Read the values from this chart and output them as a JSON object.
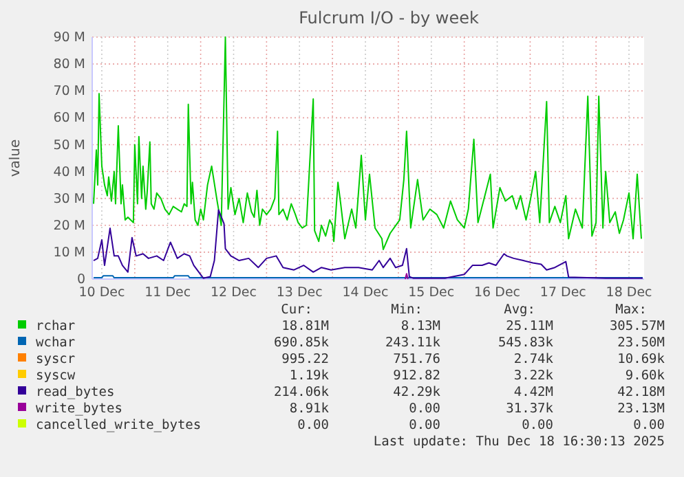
{
  "chart_data": {
    "type": "line",
    "title": "Fulcrum I/O - by week",
    "ylabel": "value",
    "xlim": [
      "2025-12-10T08:30",
      "2025-12-18T17:30"
    ],
    "xticks": [
      {
        "value": "2025-12-10T12:00",
        "label": "10 Dec"
      },
      {
        "value": "2025-12-11T00:00",
        "label": null
      },
      {
        "value": "2025-12-11T12:00",
        "label": "11 Dec"
      },
      {
        "value": "2025-12-12T00:00",
        "label": null
      },
      {
        "value": "2025-12-12T12:00",
        "label": "12 Dec"
      },
      {
        "value": "2025-12-13T00:00",
        "label": null
      },
      {
        "value": "2025-12-13T12:00",
        "label": "13 Dec"
      },
      {
        "value": "2025-12-14T00:00",
        "label": null
      },
      {
        "value": "2025-12-14T12:00",
        "label": "14 Dec"
      },
      {
        "value": "2025-12-15T00:00",
        "label": null
      },
      {
        "value": "2025-12-15T12:00",
        "label": "15 Dec"
      },
      {
        "value": "2025-12-16T00:00",
        "label": null
      },
      {
        "value": "2025-12-16T12:00",
        "label": "16 Dec"
      },
      {
        "value": "2025-12-17T00:00",
        "label": null
      },
      {
        "value": "2025-12-17T12:00",
        "label": "17 Dec"
      },
      {
        "value": "2025-12-18T00:00",
        "label": null
      },
      {
        "value": "2025-12-18T12:00",
        "label": "18 Dec"
      }
    ],
    "ylim": [
      0,
      90
    ],
    "yticks": [
      {
        "value": 0,
        "label": "0"
      },
      {
        "value": 10,
        "label": "10 M"
      },
      {
        "value": 20,
        "label": "20 M"
      },
      {
        "value": 30,
        "label": "30 M"
      },
      {
        "value": 40,
        "label": "40 M"
      },
      {
        "value": 50,
        "label": "50 M"
      },
      {
        "value": 60,
        "label": "60 M"
      },
      {
        "value": 70,
        "label": "70 M"
      },
      {
        "value": 80,
        "label": "80 M"
      },
      {
        "value": 90,
        "label": "90 M"
      }
    ],
    "grid": true,
    "legend": "bottom",
    "marker": "none",
    "line_style": "solid",
    "series": [
      {
        "name": "rchar",
        "color": "#00cc00",
        "x": [
          "2025-12-10T09:00",
          "2025-12-10T10:00",
          "2025-12-10T10:30",
          "2025-12-10T11:00",
          "2025-12-10T12:00",
          "2025-12-10T13:00",
          "2025-12-10T14:00",
          "2025-12-10T14:30",
          "2025-12-10T15:30",
          "2025-12-10T16:30",
          "2025-12-10T17:00",
          "2025-12-10T18:00",
          "2025-12-10T19:00",
          "2025-12-10T19:30",
          "2025-12-10T20:30",
          "2025-12-10T21:30",
          "2025-12-10T22:30",
          "2025-12-10T23:30",
          "2025-12-11T00:00",
          "2025-12-11T01:00",
          "2025-12-11T01:30",
          "2025-12-11T02:30",
          "2025-12-11T03:00",
          "2025-12-11T04:00",
          "2025-12-11T04:30",
          "2025-12-11T05:30",
          "2025-12-11T06:00",
          "2025-12-11T07:00",
          "2025-12-11T08:00",
          "2025-12-11T09:30",
          "2025-12-11T11:00",
          "2025-12-11T12:30",
          "2025-12-11T14:00",
          "2025-12-11T15:30",
          "2025-12-11T17:00",
          "2025-12-11T18:00",
          "2025-12-11T19:00",
          "2025-12-11T19:30",
          "2025-12-11T20:30",
          "2025-12-11T21:00",
          "2025-12-11T22:00",
          "2025-12-11T23:00",
          "2025-12-12T00:00",
          "2025-12-12T01:00",
          "2025-12-12T02:30",
          "2025-12-12T04:00",
          "2025-12-12T06:00",
          "2025-12-12T07:30",
          "2025-12-12T09:00",
          "2025-12-12T10:00",
          "2025-12-12T11:00",
          "2025-12-12T12:30",
          "2025-12-12T14:00",
          "2025-12-12T15:30",
          "2025-12-12T17:00",
          "2025-12-12T18:30",
          "2025-12-12T19:30",
          "2025-12-12T20:30",
          "2025-12-12T21:30",
          "2025-12-12T22:30",
          "2025-12-13T00:00",
          "2025-12-13T01:30",
          "2025-12-13T03:00",
          "2025-12-13T04:00",
          "2025-12-13T04:30",
          "2025-12-13T06:00",
          "2025-12-13T07:30",
          "2025-12-13T09:00",
          "2025-12-13T10:30",
          "2025-12-13T11:30",
          "2025-12-13T13:00",
          "2025-12-13T14:30",
          "2025-12-13T17:00",
          "2025-12-13T17:30",
          "2025-12-13T19:00",
          "2025-12-13T20:00",
          "2025-12-13T21:30",
          "2025-12-13T23:00",
          "2025-12-14T00:00",
          "2025-12-14T00:30",
          "2025-12-14T02:00",
          "2025-12-14T03:00",
          "2025-12-14T04:30",
          "2025-12-14T07:00",
          "2025-12-14T08:30",
          "2025-12-14T10:30",
          "2025-12-14T12:00",
          "2025-12-14T13:30",
          "2025-12-14T15:30",
          "2025-12-14T18:00",
          "2025-12-14T18:30",
          "2025-12-14T21:00",
          "2025-12-15T00:30",
          "2025-12-15T02:00",
          "2025-12-15T03:00",
          "2025-12-15T04:30",
          "2025-12-15T07:00",
          "2025-12-15T09:00",
          "2025-12-15T11:30",
          "2025-12-15T14:00",
          "2025-12-15T16:30",
          "2025-12-15T19:00",
          "2025-12-15T21:30",
          "2025-12-16T00:00",
          "2025-12-16T01:30",
          "2025-12-16T03:30",
          "2025-12-16T05:00",
          "2025-12-16T07:30",
          "2025-12-16T09:30",
          "2025-12-16T10:30",
          "2025-12-16T13:00",
          "2025-12-16T15:00",
          "2025-12-16T17:30",
          "2025-12-16T19:00",
          "2025-12-16T20:30",
          "2025-12-16T22:30",
          "2025-12-17T00:00",
          "2025-12-17T02:00",
          "2025-12-17T03:30",
          "2025-12-17T06:00",
          "2025-12-17T07:00",
          "2025-12-17T09:00",
          "2025-12-17T11:00",
          "2025-12-17T13:00",
          "2025-12-17T14:00",
          "2025-12-17T16:30",
          "2025-12-17T19:00",
          "2025-12-17T21:00",
          "2025-12-17T22:30",
          "2025-12-18T00:00",
          "2025-12-18T01:00",
          "2025-12-18T02:30",
          "2025-12-18T03:30",
          "2025-12-18T05:00",
          "2025-12-18T07:00",
          "2025-12-18T08:30",
          "2025-12-18T10:00",
          "2025-12-18T12:00",
          "2025-12-18T13:30",
          "2025-12-18T15:00",
          "2025-12-18T16:30"
        ],
        "values": [
          28,
          48,
          35,
          69,
          42,
          35,
          31,
          38,
          29,
          40,
          28,
          57,
          28,
          35,
          22,
          23,
          22,
          21,
          50,
          28,
          53,
          30,
          42,
          26,
          32,
          51,
          28,
          26,
          32,
          30,
          26,
          24,
          27,
          26,
          25,
          28,
          27,
          65,
          28,
          36,
          22,
          20,
          26,
          22,
          35,
          42,
          29,
          20,
          90,
          26,
          34,
          24,
          30,
          21,
          32,
          25,
          23,
          33,
          20,
          26,
          24,
          26,
          30,
          55,
          24,
          26,
          22,
          28,
          24,
          21,
          19,
          20,
          67,
          18,
          14,
          20,
          16,
          22,
          20,
          14,
          36,
          28,
          15,
          26,
          19,
          46,
          22,
          39,
          19,
          15,
          11,
          17,
          22,
          37,
          55,
          19,
          37,
          22,
          26,
          24,
          19,
          29,
          22,
          19,
          26,
          52,
          21,
          31,
          39,
          19,
          34,
          29,
          31,
          26,
          31,
          22,
          29,
          40,
          21,
          66,
          21,
          27,
          21,
          31,
          15,
          26,
          19,
          68,
          16,
          21,
          68,
          19,
          40,
          21,
          25,
          17,
          22,
          32,
          15,
          39,
          15
        ]
      },
      {
        "name": "wchar",
        "color": "#0066b3",
        "x": [
          "2025-12-10T09:00",
          "2025-12-10T12:00",
          "2025-12-10T12:30",
          "2025-12-10T16:00",
          "2025-12-10T16:30",
          "2025-12-11T14:00",
          "2025-12-11T14:30",
          "2025-12-11T19:30",
          "2025-12-11T20:00",
          "2025-12-18T17:00"
        ],
        "values": [
          0.5,
          0.5,
          1.2,
          1.2,
          0.5,
          0.5,
          1.2,
          1.2,
          0.5,
          0.5
        ]
      },
      {
        "name": "syscr",
        "color": "#ff8000"
      },
      {
        "name": "syscw",
        "color": "#ffcc00"
      },
      {
        "name": "read_bytes",
        "color": "#330099",
        "x": [
          "2025-12-10T09:00",
          "2025-12-10T10:30",
          "2025-12-10T12:00",
          "2025-12-10T13:00",
          "2025-12-10T15:00",
          "2025-12-10T16:30",
          "2025-12-10T18:00",
          "2025-12-10T19:30",
          "2025-12-10T21:30",
          "2025-12-10T23:00",
          "2025-12-11T00:30",
          "2025-12-11T03:00",
          "2025-12-11T05:00",
          "2025-12-11T08:00",
          "2025-12-11T10:30",
          "2025-12-11T13:00",
          "2025-12-11T15:30",
          "2025-12-11T18:00",
          "2025-12-11T20:00",
          "2025-12-11T21:30",
          "2025-12-12T01:00",
          "2025-12-12T03:30",
          "2025-12-12T05:00",
          "2025-12-12T06:30",
          "2025-12-12T08:30",
          "2025-12-12T09:00",
          "2025-12-12T11:00",
          "2025-12-12T14:00",
          "2025-12-12T17:30",
          "2025-12-12T21:00",
          "2025-12-13T00:00",
          "2025-12-13T03:30",
          "2025-12-13T06:00",
          "2025-12-13T10:00",
          "2025-12-13T13:30",
          "2025-12-13T17:00",
          "2025-12-13T20:00",
          "2025-12-13T23:30",
          "2025-12-14T04:30",
          "2025-12-14T09:30",
          "2025-12-14T14:30",
          "2025-12-14T17:00",
          "2025-12-14T18:30",
          "2025-12-14T21:00",
          "2025-12-14T23:00",
          "2025-12-15T01:30",
          "2025-12-15T03:00",
          "2025-12-15T04:00",
          "2025-12-15T05:30",
          "2025-12-15T17:00",
          "2025-12-16T00:00",
          "2025-12-16T03:00",
          "2025-12-16T06:30",
          "2025-12-16T09:00",
          "2025-12-16T11:30",
          "2025-12-16T14:30",
          "2025-12-16T15:30",
          "2025-12-16T18:00",
          "2025-12-16T21:30",
          "2025-12-17T01:00",
          "2025-12-17T04:00",
          "2025-12-17T06:00",
          "2025-12-17T09:00",
          "2025-12-17T13:00",
          "2025-12-17T14:00",
          "2025-12-18T03:30",
          "2025-12-18T17:00"
        ],
        "values": [
          6.9,
          7.7,
          14.6,
          5.1,
          18.9,
          8.6,
          8.6,
          5.1,
          2.6,
          15.4,
          8.6,
          9.4,
          7.7,
          8.6,
          6.9,
          13.7,
          7.7,
          9.4,
          8.6,
          5.1,
          0.3,
          0.9,
          6.9,
          25.7,
          20.6,
          11.3,
          8.6,
          6.9,
          7.7,
          4.3,
          7.7,
          8.6,
          4.3,
          3.4,
          5.1,
          2.6,
          4.3,
          3.4,
          4.3,
          4.3,
          3.4,
          6.9,
          4.3,
          7.7,
          4.3,
          5.1,
          11.3,
          0.9,
          0.3,
          0.3,
          1.7,
          5.1,
          5.1,
          6.0,
          5.1,
          9.4,
          8.6,
          7.7,
          6.9,
          6.0,
          5.5,
          3.4,
          4.3,
          6.5,
          0.7,
          0.3,
          0.3
        ]
      },
      {
        "name": "write_bytes",
        "color": "#990099",
        "x": [
          "2025-12-15T02:30",
          "2025-12-15T03:00",
          "2025-12-15T03:30"
        ],
        "values": [
          0,
          2,
          0
        ]
      },
      {
        "name": "cancelled_write_bytes",
        "color": "#ccff00"
      }
    ],
    "annotations": [
      "Cur:",
      "Min:",
      "Avg:",
      "Max:",
      "18.81M",
      "8.13M",
      "25.11M",
      "305.57M",
      "690.85k",
      "243.11k",
      "545.83k",
      "23.50M",
      "995.22",
      "751.76",
      "2.74k",
      "10.69k",
      "1.19k",
      "912.82",
      "3.22k",
      "9.60k",
      "214.06k",
      "42.29k",
      "4.42M",
      "42.18M",
      "8.91k",
      "0.00",
      "31.37k",
      "23.13M",
      "0.00",
      "0.00",
      "0.00",
      "0.00",
      "Last update: Thu Dec 18 16:30:13 2025"
    ]
  }
}
